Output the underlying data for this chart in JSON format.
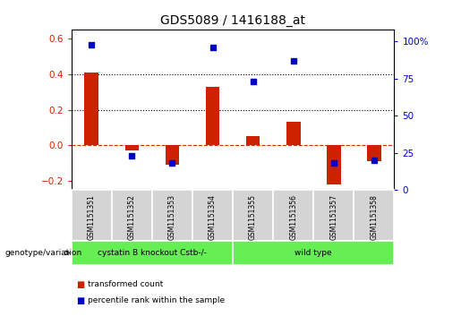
{
  "title": "GDS5089 / 1416188_at",
  "samples": [
    "GSM1151351",
    "GSM1151352",
    "GSM1151353",
    "GSM1151354",
    "GSM1151355",
    "GSM1151356",
    "GSM1151357",
    "GSM1151358"
  ],
  "transformed_count": [
    0.41,
    -0.03,
    -0.11,
    0.33,
    0.05,
    0.13,
    -0.22,
    -0.09
  ],
  "percentile_rank": [
    98,
    23,
    18,
    96,
    73,
    87,
    18,
    20
  ],
  "ylim_left": [
    -0.25,
    0.65
  ],
  "ylim_right": [
    0,
    108.33
  ],
  "yticks_left": [
    -0.2,
    0.0,
    0.2,
    0.4,
    0.6
  ],
  "yticks_right": [
    0,
    25,
    50,
    75,
    100
  ],
  "ytick_labels_right": [
    "0",
    "25",
    "50",
    "75",
    "100%"
  ],
  "group1_label": "cystatin B knockout Cstb-/-",
  "group2_label": "wild type",
  "group1_color": "#66ee55",
  "group2_color": "#66ee55",
  "bar_color": "#cc2200",
  "dot_color": "#0000cc",
  "zero_line_color": "#cc3300",
  "background_color": "#ffffff",
  "group_label": "genotype/variation",
  "legend_items": [
    "transformed count",
    "percentile rank within the sample"
  ],
  "legend_colors": [
    "#cc2200",
    "#0000cc"
  ],
  "n_group1": 4,
  "n_group2": 4
}
